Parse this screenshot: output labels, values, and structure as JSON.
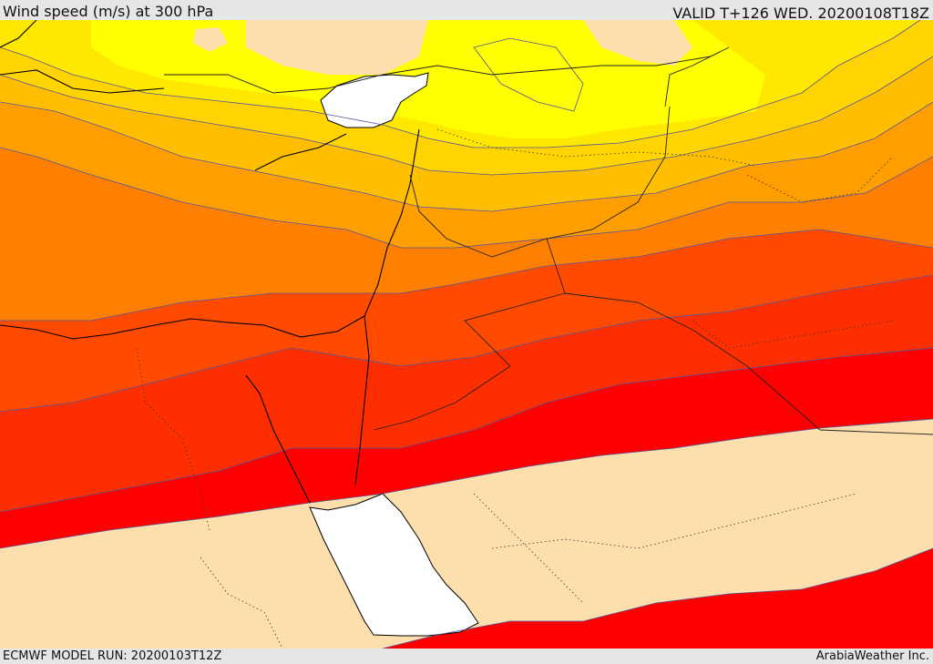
{
  "header": {
    "title": "Wind speed (m/s) at 300 hPa",
    "valid": "VALID T+126 WED. 20200108T18Z"
  },
  "footer": {
    "model_run": "ECMWF MODEL RUN: 20200103T12Z",
    "credit": "ArabiaWeather Inc."
  },
  "map": {
    "variable": "wind speed at 300 hPa",
    "palette": {
      "water": "#ffffff",
      "calm_land": "#fddfae",
      "band_1": "#ffff00",
      "band_2": "#ffe800",
      "band_3": "#ffd400",
      "band_4": "#ffbf00",
      "band_5": "#ff9e00",
      "band_6": "#ff8000",
      "band_7": "#ff6600",
      "band_8": "#ff4a00",
      "band_9": "#ff2e00",
      "band_10": "#ff0000",
      "contour": "#555599",
      "coastline": "#000000",
      "border": "#222222"
    }
  }
}
